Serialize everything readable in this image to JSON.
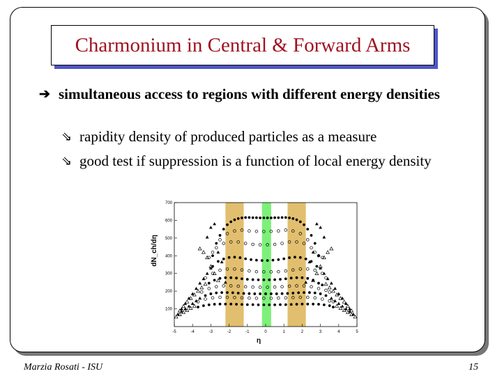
{
  "slide": {
    "title": "Charmonium in Central & Forward Arms",
    "bullet_main": "simultaneous access to regions with different energy densities",
    "sub_bullets": [
      "rapidity density of produced particles as a measure",
      "good test if suppression is a function of local energy density"
    ],
    "footer_left": "Marzia Rosati - ISU",
    "page_number": "15"
  },
  "chart_data": {
    "type": "scatter",
    "xlabel": "η",
    "ylabel": "dN_ch/dη",
    "xlim": [
      -5,
      5
    ],
    "ylim": [
      0,
      700
    ],
    "x_ticks": [
      "-5",
      "-4",
      "-3",
      "-2",
      "-1",
      "0",
      "1",
      "2",
      "3",
      "4",
      "5"
    ],
    "y_ticks": [
      "100",
      "200",
      "300",
      "400",
      "500",
      "600",
      "700"
    ],
    "highlight_bands": [
      {
        "from": -2.2,
        "to": -1.2,
        "color": "#e2bf6e"
      },
      {
        "from": -0.2,
        "to": 0.3,
        "color": "#7df07a"
      },
      {
        "from": 1.2,
        "to": 2.2,
        "color": "#e2bf6e"
      }
    ],
    "series": [
      {
        "marker": "filled-circle",
        "x": [
          -2.9,
          -2.7,
          -2.5,
          -2.3,
          -2.1,
          -1.9,
          -1.7,
          -1.5,
          -1.3,
          -1.1,
          -0.9,
          -0.7,
          -0.5,
          -0.3,
          -0.1,
          0.1,
          0.3,
          0.5,
          0.7,
          0.9,
          1.1,
          1.3,
          1.5,
          1.7,
          1.9,
          2.1,
          2.3,
          2.5,
          2.7,
          2.9
        ],
        "y": [
          400,
          470,
          515,
          550,
          575,
          592,
          603,
          610,
          614,
          616,
          616,
          615,
          615,
          614,
          614,
          614,
          614,
          615,
          615,
          616,
          616,
          614,
          610,
          603,
          592,
          575,
          550,
          515,
          470,
          400
        ]
      },
      {
        "marker": "open-circle",
        "x": [
          -2.9,
          -2.5,
          -2.1,
          -1.7,
          -1.3,
          -0.9,
          -0.5,
          -0.1,
          0.3,
          0.7,
          1.1,
          1.5,
          1.9,
          2.3,
          2.7
        ],
        "y": [
          420,
          490,
          525,
          540,
          545,
          540,
          538,
          537,
          538,
          540,
          545,
          540,
          525,
          490,
          420
        ]
      },
      {
        "marker": "open-circle",
        "x": [
          -3.1,
          -2.7,
          -2.3,
          -1.9,
          -1.5,
          -1.1,
          -0.7,
          -0.3,
          0.1,
          0.5,
          0.9,
          1.3,
          1.7,
          2.1,
          2.5,
          2.9,
          3.1
        ],
        "y": [
          390,
          445,
          470,
          478,
          478,
          470,
          464,
          462,
          462,
          464,
          470,
          478,
          478,
          470,
          445,
          400,
          390
        ]
      },
      {
        "marker": "filled-circle",
        "x": [
          -2.9,
          -2.6,
          -2.3,
          -2.0,
          -1.7,
          -1.4,
          -1.1,
          -0.8,
          -0.5,
          -0.2,
          0.1,
          0.4,
          0.7,
          1.0,
          1.3,
          1.6,
          1.9,
          2.2,
          2.5,
          2.8
        ],
        "y": [
          340,
          368,
          382,
          390,
          392,
          389,
          383,
          378,
          375,
          373,
          373,
          375,
          378,
          383,
          389,
          392,
          390,
          382,
          368,
          340
        ]
      },
      {
        "marker": "open-circle",
        "x": [
          -3.3,
          -2.9,
          -2.5,
          -2.1,
          -1.7,
          -1.3,
          -0.9,
          -0.5,
          -0.1,
          0.3,
          0.7,
          1.1,
          1.5,
          1.9,
          2.3,
          2.7,
          3.1,
          3.3
        ],
        "y": [
          275,
          300,
          318,
          325,
          325,
          320,
          314,
          310,
          309,
          309,
          310,
          314,
          320,
          325,
          325,
          318,
          300,
          275
        ]
      },
      {
        "marker": "filled-circle",
        "x": [
          -3.1,
          -2.8,
          -2.5,
          -2.2,
          -1.9,
          -1.6,
          -1.3,
          -1.0,
          -0.7,
          -0.4,
          -0.1,
          0.2,
          0.5,
          0.8,
          1.1,
          1.4,
          1.7,
          2.0,
          2.3,
          2.6,
          2.9,
          3.1
        ],
        "y": [
          245,
          262,
          272,
          276,
          276,
          274,
          270,
          267,
          265,
          264,
          264,
          264,
          265,
          267,
          270,
          274,
          276,
          276,
          272,
          262,
          245,
          235
        ]
      },
      {
        "marker": "open-circle",
        "x": [
          -3.5,
          -3.1,
          -2.7,
          -2.3,
          -1.9,
          -1.5,
          -1.1,
          -0.7,
          -0.3,
          0.1,
          0.5,
          0.9,
          1.3,
          1.7,
          2.1,
          2.5,
          2.9,
          3.3,
          3.5
        ],
        "y": [
          195,
          215,
          225,
          230,
          230,
          228,
          225,
          223,
          222,
          222,
          223,
          225,
          228,
          230,
          230,
          225,
          215,
          205,
          195
        ]
      },
      {
        "marker": "filled-circle",
        "x": [
          -3.3,
          -3.0,
          -2.7,
          -2.4,
          -2.1,
          -1.8,
          -1.5,
          -1.2,
          -0.9,
          -0.6,
          -0.3,
          0.0,
          0.3,
          0.6,
          0.9,
          1.2,
          1.5,
          1.8,
          2.1,
          2.4,
          2.7,
          3.0,
          3.3
        ],
        "y": [
          175,
          185,
          190,
          192,
          192,
          191,
          189,
          187,
          186,
          185,
          185,
          185,
          185,
          185,
          186,
          187,
          189,
          191,
          192,
          192,
          190,
          185,
          175
        ]
      },
      {
        "marker": "open-circle",
        "x": [
          -3.7,
          -3.3,
          -2.9,
          -2.5,
          -2.1,
          -1.7,
          -1.3,
          -0.9,
          -0.5,
          -0.1,
          0.3,
          0.7,
          1.1,
          1.5,
          1.9,
          2.3,
          2.7,
          3.1,
          3.5,
          3.7
        ],
        "y": [
          140,
          155,
          162,
          165,
          165,
          164,
          162,
          161,
          160,
          160,
          160,
          161,
          162,
          164,
          165,
          165,
          162,
          155,
          145,
          140
        ]
      },
      {
        "marker": "filled-circle",
        "x": [
          -3.7,
          -3.4,
          -3.1,
          -2.8,
          -2.5,
          -2.2,
          -1.9,
          -1.6,
          -1.3,
          -1.0,
          -0.7,
          -0.4,
          -0.1,
          0.2,
          0.5,
          0.8,
          1.1,
          1.4,
          1.7,
          2.0,
          2.3,
          2.6,
          2.9,
          3.2,
          3.5,
          3.7
        ],
        "y": [
          110,
          118,
          123,
          126,
          127,
          127,
          127,
          126,
          125,
          124,
          124,
          123,
          123,
          123,
          123,
          124,
          124,
          125,
          126,
          127,
          127,
          127,
          126,
          123,
          118,
          110
        ]
      },
      {
        "marker": "filled-triangle",
        "x": [
          -3.2,
          -3.0,
          -2.8,
          -2.6,
          -2.4,
          -2.2,
          2.2,
          2.4,
          2.6,
          2.8,
          3.0,
          3.2
        ],
        "y": [
          505,
          560,
          580,
          420,
          365,
          250,
          250,
          365,
          420,
          580,
          560,
          505
        ]
      },
      {
        "marker": "open-triangle",
        "x": [
          -3.6,
          -3.4,
          -3.2,
          -3.0,
          -2.8,
          -2.6,
          2.6,
          2.8,
          3.0,
          3.2,
          3.4,
          3.6
        ],
        "y": [
          440,
          420,
          390,
          340,
          300,
          260,
          260,
          300,
          340,
          390,
          420,
          440
        ]
      },
      {
        "marker": "filled-triangle",
        "x": [
          -4.6,
          -4.4,
          -4.2,
          -4.0,
          -3.8,
          -3.6,
          -3.4,
          -3.2,
          -3.0,
          3.0,
          3.2,
          3.4,
          3.6,
          3.8,
          4.0,
          4.2,
          4.4,
          4.6
        ],
        "y": [
          100,
          130,
          160,
          185,
          215,
          245,
          270,
          300,
          330,
          330,
          300,
          270,
          245,
          215,
          185,
          160,
          130,
          100
        ]
      },
      {
        "marker": "open-triangle",
        "x": [
          -4.7,
          -4.5,
          -4.3,
          -4.1,
          -3.9,
          -3.7,
          -3.5,
          -3.3,
          3.3,
          3.5,
          3.7,
          3.9,
          4.1,
          4.3,
          4.5,
          4.7
        ],
        "y": [
          90,
          115,
          140,
          160,
          180,
          200,
          220,
          240,
          240,
          220,
          200,
          180,
          160,
          140,
          115,
          90
        ]
      },
      {
        "marker": "filled-triangle",
        "x": [
          -4.8,
          -4.6,
          -4.4,
          -4.2,
          -4.0,
          -3.8,
          -3.6,
          3.6,
          3.8,
          4.0,
          4.2,
          4.4,
          4.6,
          4.8
        ],
        "y": [
          70,
          85,
          100,
          115,
          130,
          145,
          160,
          160,
          145,
          130,
          115,
          100,
          85,
          70
        ]
      },
      {
        "marker": "open-triangle",
        "x": [
          -4.9,
          -4.7,
          -4.5,
          -4.3,
          -4.1,
          -3.9,
          3.9,
          4.1,
          4.3,
          4.5,
          4.7,
          4.9
        ],
        "y": [
          55,
          68,
          80,
          92,
          104,
          116,
          116,
          104,
          92,
          80,
          68,
          55
        ]
      }
    ]
  }
}
